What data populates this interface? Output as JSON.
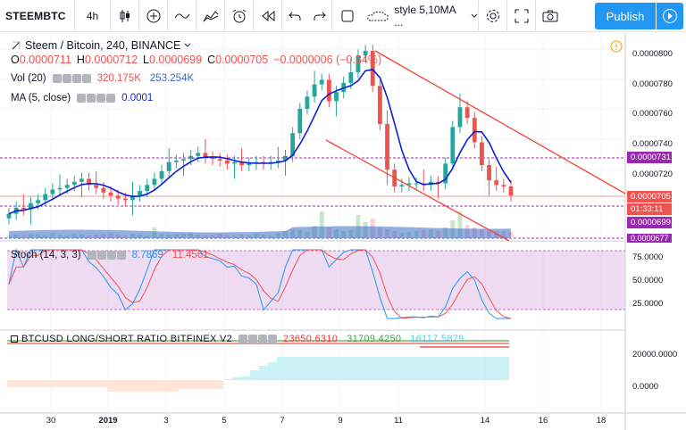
{
  "toolbar": {
    "symbol": "STEEMBTC",
    "interval": "4h",
    "style_label": "style 5,10MA ...",
    "publish_label": "Publish"
  },
  "legend": {
    "title": "Steem / Bitcoin, 240, BINANCE",
    "ohlc": {
      "o_label": "O",
      "o": "0.0000711",
      "h_label": "H",
      "h": "0.0000712",
      "l_label": "L",
      "l": "0.0000699",
      "c_label": "C",
      "c": "0.0000705",
      "change": "−0.0000006 (−0.84%)"
    },
    "vol_label": "Vol (20)",
    "vol_value1": "320.175K",
    "vol_value2": "253.254K",
    "ma_label": "MA (5, close)",
    "ma_value": "0.0001"
  },
  "stoch": {
    "label": "Stoch (14, 3, 3)",
    "k": "8.7869",
    "d": "11.4561"
  },
  "ratio": {
    "label": "BTCUSD LONG/SHORT RATIO BITFINEX V2",
    "v1": "23650.6310",
    "v2": "31709.4250",
    "v3": "16117.5879"
  },
  "price_axis": [
    "0.0000800",
    "0.0000780",
    "0.0000760",
    "0.0000740",
    "0.0000720"
  ],
  "price_tags": {
    "level_731": "0.0000731",
    "last": "0.0000705",
    "countdown": "01:33:11",
    "low": "0.0000699",
    "bottom": "0.0000677"
  },
  "stoch_axis": [
    "75.0000",
    "50.0000",
    "25.0000"
  ],
  "ratio_axis": [
    "20000.0000",
    "0.0000"
  ],
  "time_axis": [
    "30",
    "2019",
    "3",
    "5",
    "7",
    "9",
    "11",
    "14",
    "16",
    "18"
  ],
  "colors": {
    "accent": "#2196f3",
    "up": "#26a69a",
    "down": "#ef5350",
    "ma": "#0d1fd6",
    "purple": "#9c27b0"
  },
  "chart_data": {
    "type": "candlestick",
    "symbol": "Steem / Bitcoin",
    "timeframe": "240",
    "exchange": "BINANCE",
    "ylim": [
      6.77e-05,
      8.1e-05
    ],
    "closes": [
      6.93e-05,
      6.97e-05,
      6.96e-05,
      7e-05,
      7.02e-05,
      7.06e-05,
      7.09e-05,
      7.1e-05,
      7.12e-05,
      7.14e-05,
      7.16e-05,
      7.12e-05,
      7.1e-05,
      7.07e-05,
      7.05e-05,
      7.03e-05,
      7.02e-05,
      7.05e-05,
      7.08e-05,
      7.12e-05,
      7.16e-05,
      7.21e-05,
      7.27e-05,
      7.28e-05,
      7.29e-05,
      7.31e-05,
      7.33e-05,
      7.3e-05,
      7.29e-05,
      7.28e-05,
      7.26e-05,
      7.27e-05,
      7.25e-05,
      7.26e-05,
      7.27e-05,
      7.26e-05,
      7.27e-05,
      7.28e-05,
      7.31e-05,
      7.46e-05,
      7.62e-05,
      7.7e-05,
      7.78e-05,
      7.81e-05,
      7.67e-05,
      7.73e-05,
      7.79e-05,
      7.86e-05,
      7.97e-05,
      8e-05,
      7.77e-05,
      7.52e-05,
      7.22e-05,
      7.11e-05,
      7.12e-05,
      7.13e-05,
      7.13e-05,
      7.12e-05,
      7.14e-05,
      7.13e-05,
      7.26e-05,
      7.5e-05,
      7.63e-05,
      7.56e-05,
      7.4e-05,
      7.25e-05,
      7.15e-05,
      7.12e-05,
      7.11e-05,
      7.05e-05
    ]
  }
}
